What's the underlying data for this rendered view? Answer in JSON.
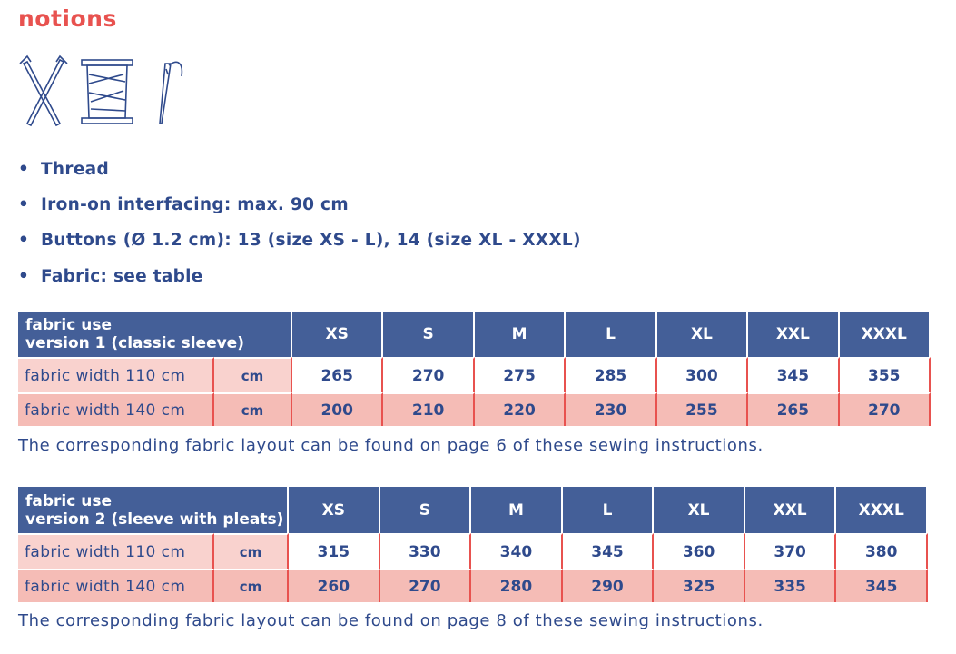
{
  "title": "notions",
  "bullets": [
    "Thread",
    "Iron-on interfacing: max. 90 cm",
    "Buttons (Ø 1.2 cm): 13 (size XS - L), 14 (size XL - XXXL)",
    "Fabric: see table"
  ],
  "tables": [
    {
      "header_label": [
        "fabric use",
        "version 1 (classic sleeve)"
      ],
      "sizes": [
        "XS",
        "S",
        "M",
        "L",
        "XL",
        "XXL",
        "XXXL"
      ],
      "rows": [
        {
          "label": "fabric width 110 cm",
          "unit": "cm",
          "values": [
            265,
            270,
            275,
            285,
            300,
            345,
            355
          ]
        },
        {
          "label": "fabric width 140 cm",
          "unit": "cm",
          "values": [
            200,
            210,
            220,
            230,
            255,
            265,
            270
          ]
        }
      ],
      "note": "The corresponding fabric layout can be found on page 6 of these sewing instructions."
    },
    {
      "header_label": [
        "fabric use",
        "version 2 (sleeve with pleats)"
      ],
      "sizes": [
        "XS",
        "S",
        "M",
        "L",
        "XL",
        "XXL",
        "XXXL"
      ],
      "rows": [
        {
          "label": "fabric width 110 cm",
          "unit": "cm",
          "values": [
            315,
            330,
            340,
            345,
            360,
            370,
            380
          ]
        },
        {
          "label": "fabric width 140 cm",
          "unit": "cm",
          "values": [
            260,
            270,
            280,
            290,
            325,
            335,
            345
          ]
        }
      ],
      "note": "The corresponding fabric layout can be found on page 8 of these sewing instructions."
    }
  ]
}
